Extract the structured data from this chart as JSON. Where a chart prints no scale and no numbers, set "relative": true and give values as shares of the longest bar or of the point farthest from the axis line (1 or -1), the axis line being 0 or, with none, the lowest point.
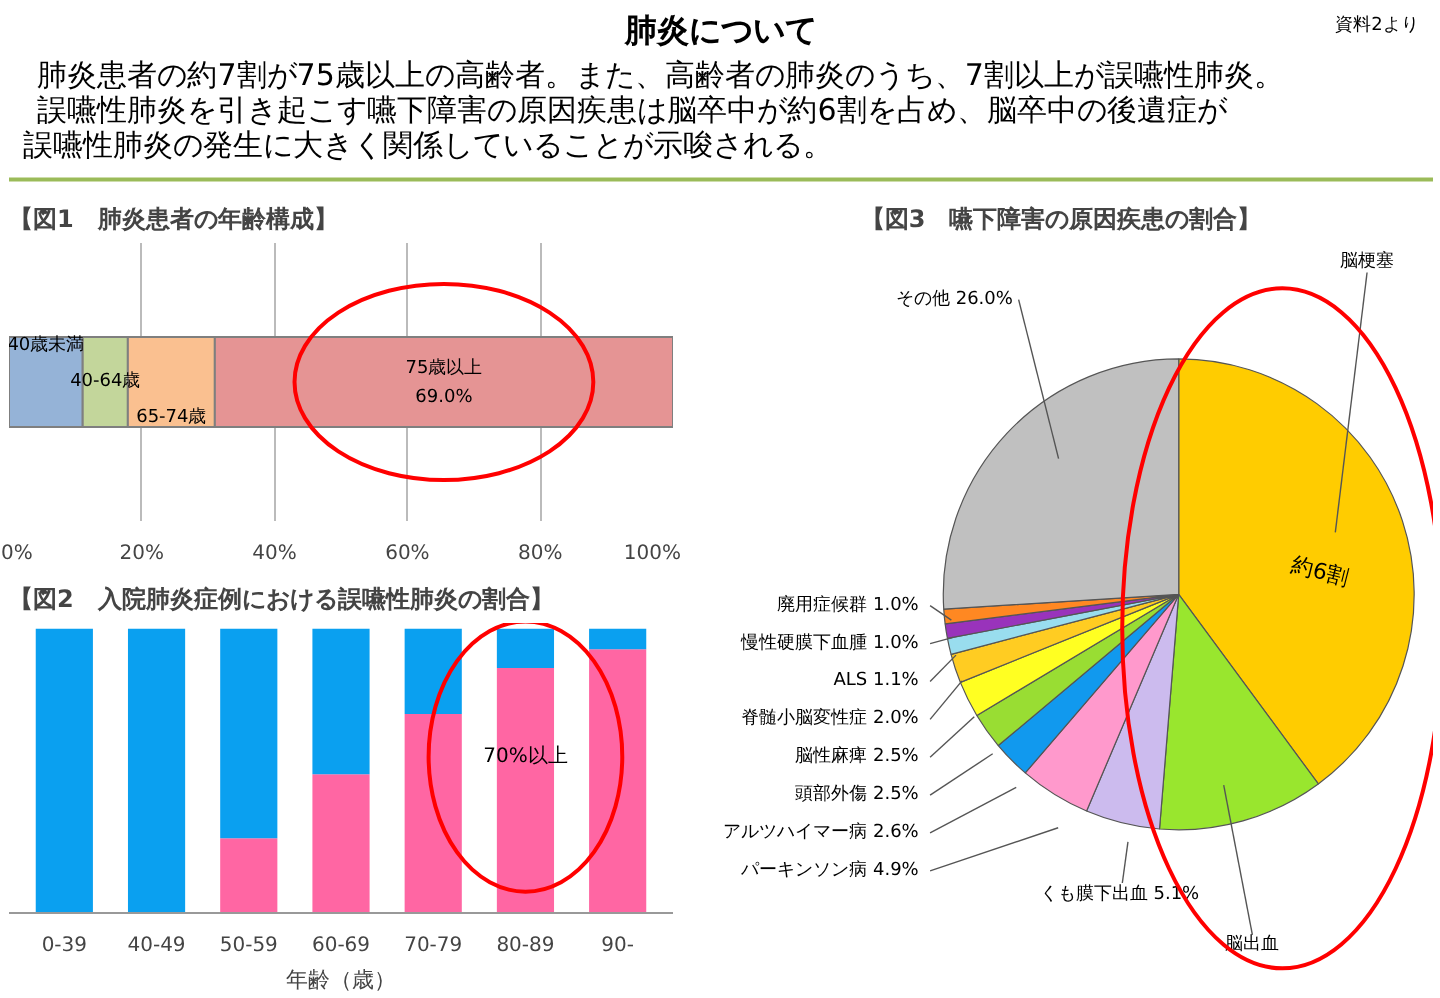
{
  "chart_data": [
    {
      "type": "other",
      "title": "肺炎について",
      "annotations": [
        "肺炎患者の約7割が75歳以上の高齢者。また、高齢者の肺炎のうち、7割以上が誤嚥性肺炎。",
        "誤嚥性肺炎を引き起こす嚥下障害の原因疾患は脳卒中が約6割を占め、脳卒中の後遺症が",
        "誤嚥性肺炎の発生に大きく関係していることが示唆される。",
        "資料2より"
      ]
    },
    {
      "type": "bar",
      "title": "【図1　肺炎患者の年齢構成】",
      "orientation": "horizontal",
      "stacked": true,
      "categories": [
        null
      ],
      "xlim": [
        0,
        100
      ],
      "xticks": [
        {
          "value": 0,
          "label": "0%"
        },
        {
          "value": 20,
          "label": "20%"
        },
        {
          "value": 40,
          "label": "40%"
        },
        {
          "value": 60,
          "label": "60%"
        },
        {
          "value": 80,
          "label": "80%"
        },
        {
          "value": 100,
          "label": "100%"
        }
      ],
      "grid": "x",
      "series": [
        {
          "name": "40歳未満",
          "color": "#95b3d7",
          "values": [
            11.1
          ]
        },
        {
          "name": "40-64歳",
          "color": "#c3d69b",
          "values": [
            6.8
          ]
        },
        {
          "name": "65-74歳",
          "color": "#fac090",
          "values": [
            13.1
          ]
        },
        {
          "name": "75歳以上",
          "color": "#e59494",
          "values": [
            69.0
          ],
          "value_labels": [
            "69.0%"
          ]
        }
      ]
    },
    {
      "type": "bar",
      "title": "【図2　入院肺炎症例における誤嚥性肺炎の割合】",
      "stacked": true,
      "relative": true,
      "xlabel": "年齢（歳）",
      "categories": [
        "0-39",
        "40-49",
        "50-59",
        "60-69",
        "70-79",
        "80-89",
        "90-"
      ],
      "annotations": [
        "70%以上"
      ],
      "series": [
        {
          "color": "#ff66a3",
          "values": [
            0,
            0,
            0.263,
            0.488,
            0.7,
            0.862,
            0.928
          ]
        },
        {
          "color": "#0aa0f0",
          "values": [
            1,
            1,
            0.737,
            0.512,
            0.3,
            0.138,
            0.072
          ]
        }
      ]
    },
    {
      "type": "pie",
      "title": "【図3　嚥下障害の原因疾患の割合】",
      "annotations": [
        "約6割"
      ],
      "categories": [
        "脳梗塞",
        "脳出血",
        "くも膜下出血",
        "パーキンソン病",
        "アルツハイマー病",
        "頭部外傷",
        "脳性麻痺",
        "脊髄小脳変性症",
        "ALS",
        "慢性硬膜下血腫",
        "廃用症候群",
        "その他"
      ],
      "values": [
        39.9,
        11.4,
        5.1,
        4.9,
        2.6,
        2.5,
        2.5,
        2.0,
        1.1,
        1.0,
        1.0,
        26.0
      ],
      "value_labels": [
        null,
        null,
        "5.1%",
        "4.9%",
        "2.6%",
        "2.5%",
        "2.5%",
        "2.0%",
        "1.1%",
        "1.0%",
        "1.0%",
        "26.0%"
      ],
      "colors": [
        "#ffcc00",
        "#99e62e",
        "#ccbbee",
        "#ff99cc",
        "#1199ee",
        "#99dd33",
        "#ffff22",
        "#ffcc22",
        "#99ddee",
        "#9933bb",
        "#ff8822",
        "#c0c0c0"
      ]
    }
  ]
}
